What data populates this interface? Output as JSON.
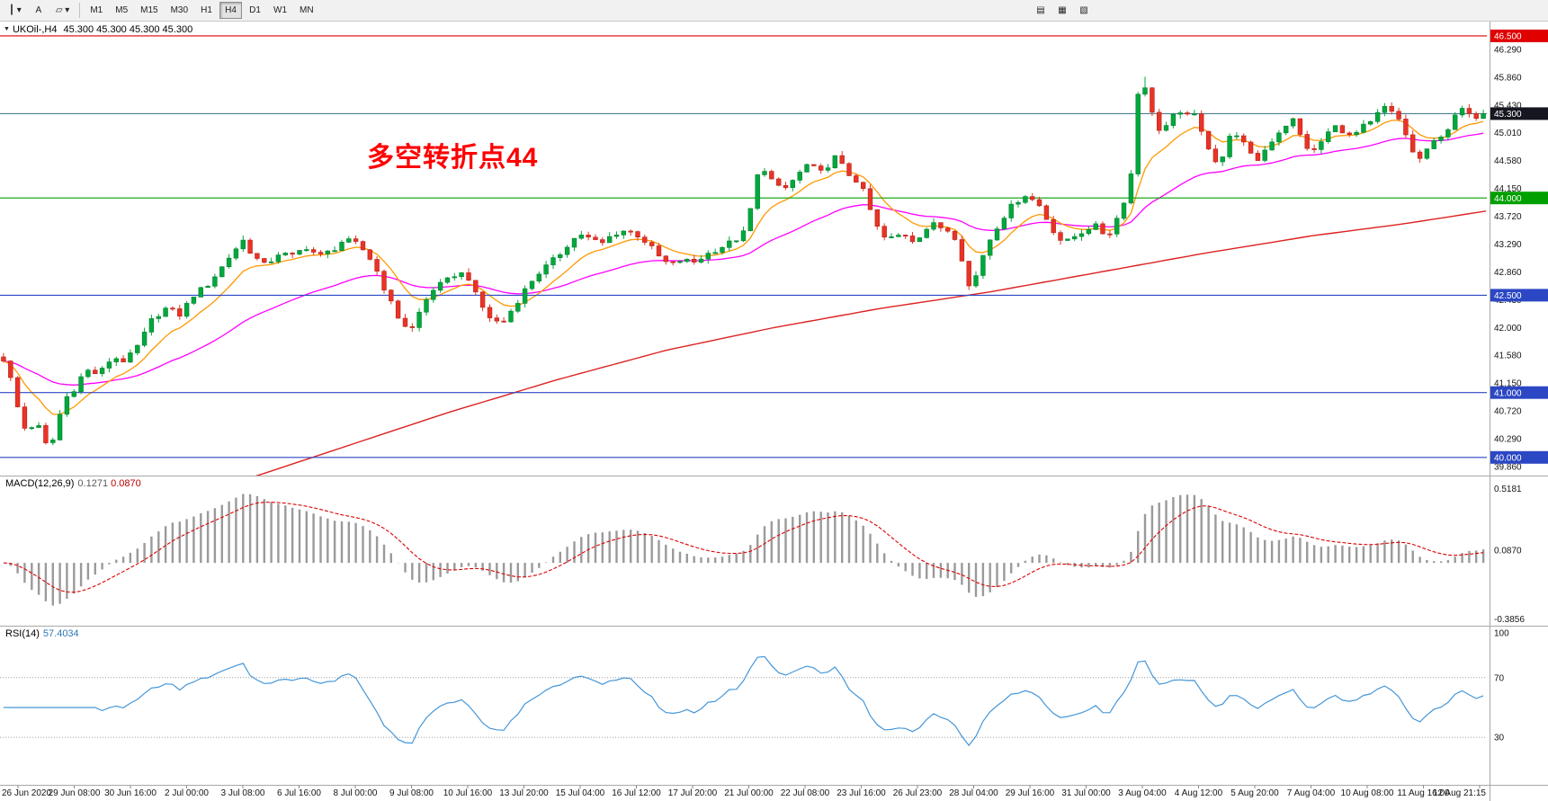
{
  "toolbar": {
    "tools": [
      {
        "name": "line-studies-tool",
        "glyph": "┃",
        "has_dropdown": true
      },
      {
        "name": "text-tool",
        "glyph": "A",
        "has_dropdown": false
      },
      {
        "name": "shapes-tool",
        "glyph": "▱",
        "has_dropdown": true
      }
    ],
    "timeframes": [
      "M1",
      "M5",
      "M15",
      "M30",
      "H1",
      "H4",
      "D1",
      "W1",
      "MN"
    ],
    "selected_timeframe": "H4",
    "extras": [
      {
        "name": "toolbar-extra-1",
        "glyph": "▤"
      },
      {
        "name": "toolbar-extra-2",
        "glyph": "▦"
      },
      {
        "name": "toolbar-extra-3",
        "glyph": "▧"
      }
    ]
  },
  "chart": {
    "title_symbol": "UKOil-,H4",
    "title_quotes": "45.300 45.300 45.300 45.300",
    "annotation": {
      "text": "多空转折点44",
      "color": "#ff0000"
    },
    "price_axis_ticks": [
      "46.290",
      "45.860",
      "45.430",
      "45.010",
      "44.580",
      "44.150",
      "43.720",
      "43.290",
      "42.860",
      "42.430",
      "42.000",
      "41.580",
      "41.150",
      "40.720",
      "40.290",
      "39.860"
    ],
    "price_badges": [
      {
        "label": "46.500",
        "price": 46.5,
        "bg": "#e00000"
      },
      {
        "label": "45.300",
        "price": 45.3,
        "bg": "#15161f"
      },
      {
        "label": "44.000",
        "price": 44.0,
        "bg": "#00a000"
      },
      {
        "label": "42.500",
        "price": 42.5,
        "bg": "#2b47c4"
      },
      {
        "label": "41.000",
        "price": 41.0,
        "bg": "#2b47c4"
      },
      {
        "label": "40.000",
        "price": 40.0,
        "bg": "#2b47c4"
      }
    ],
    "horizontal_lines": [
      {
        "price": 46.5,
        "color": "#e00000"
      },
      {
        "price": 45.3,
        "color": "#4a7d96"
      },
      {
        "price": 44.0,
        "color": "#00a000"
      },
      {
        "price": 42.5,
        "color": "#2b47c4"
      },
      {
        "price": 41.0,
        "color": "#2b47c4"
      },
      {
        "price": 40.0,
        "color": "#2b47c4"
      }
    ],
    "time_axis_labels": [
      "26 Jun 2020",
      "29 Jun 08:00",
      "30 Jun 16:00",
      "2 Jul 00:00",
      "3 Jul 08:00",
      "6 Jul 16:00",
      "8 Jul 00:00",
      "9 Jul 08:00",
      "10 Jul 16:00",
      "13 Jul 20:00",
      "15 Jul 04:00",
      "16 Jul 12:00",
      "17 Jul 20:00",
      "21 Jul 00:00",
      "22 Jul 08:00",
      "23 Jul 16:00",
      "26 Jul 23:00",
      "28 Jul 04:00",
      "29 Jul 16:00",
      "31 Jul 00:00",
      "3 Aug 04:00",
      "4 Aug 12:00",
      "5 Aug 20:00",
      "7 Aug 04:00",
      "10 Aug 08:00",
      "11 Aug 16:00",
      "12 Aug 21:15"
    ],
    "price_range": {
      "min": 39.72,
      "max": 46.72
    },
    "bars": 211,
    "last_price": 45.3,
    "price_path": [
      [
        3,
        41.55
      ],
      [
        12,
        41.2
      ],
      [
        20,
        40.75
      ],
      [
        30,
        40.35
      ],
      [
        40,
        40.6
      ],
      [
        48,
        40.25
      ],
      [
        56,
        40.12
      ],
      [
        64,
        40.55
      ],
      [
        72,
        40.9
      ],
      [
        82,
        41.05
      ],
      [
        95,
        41.35
      ],
      [
        110,
        41.28
      ],
      [
        125,
        41.55
      ],
      [
        140,
        41.48
      ],
      [
        155,
        41.75
      ],
      [
        170,
        42.15
      ],
      [
        185,
        42.3
      ],
      [
        200,
        42.2
      ],
      [
        215,
        42.5
      ],
      [
        230,
        42.65
      ],
      [
        245,
        42.9
      ],
      [
        258,
        43.15
      ],
      [
        270,
        43.35
      ],
      [
        282,
        43.1
      ],
      [
        295,
        42.95
      ],
      [
        310,
        43.15
      ],
      [
        325,
        43.1
      ],
      [
        340,
        43.25
      ],
      [
        355,
        43.1
      ],
      [
        370,
        43.2
      ],
      [
        382,
        43.35
      ],
      [
        395,
        43.3
      ],
      [
        408,
        43.15
      ],
      [
        420,
        42.85
      ],
      [
        432,
        42.45
      ],
      [
        445,
        42.1
      ],
      [
        457,
        41.95
      ],
      [
        470,
        42.35
      ],
      [
        482,
        42.6
      ],
      [
        495,
        42.7
      ],
      [
        508,
        42.85
      ],
      [
        520,
        42.8
      ],
      [
        532,
        42.4
      ],
      [
        545,
        42.15
      ],
      [
        558,
        42.05
      ],
      [
        570,
        42.3
      ],
      [
        582,
        42.55
      ],
      [
        595,
        42.8
      ],
      [
        608,
        42.95
      ],
      [
        620,
        43.1
      ],
      [
        632,
        43.3
      ],
      [
        645,
        43.45
      ],
      [
        658,
        43.35
      ],
      [
        670,
        43.3
      ],
      [
        682,
        43.45
      ],
      [
        695,
        43.5
      ],
      [
        707,
        43.45
      ],
      [
        720,
        43.3
      ],
      [
        732,
        43.1
      ],
      [
        745,
        42.95
      ],
      [
        758,
        43.05
      ],
      [
        770,
        43.0
      ],
      [
        782,
        43.1
      ],
      [
        795,
        43.2
      ],
      [
        808,
        43.28
      ],
      [
        820,
        43.38
      ],
      [
        830,
        43.5
      ],
      [
        838,
        44.1
      ],
      [
        846,
        44.55
      ],
      [
        854,
        44.35
      ],
      [
        862,
        44.2
      ],
      [
        870,
        44.1
      ],
      [
        880,
        44.25
      ],
      [
        890,
        44.4
      ],
      [
        900,
        44.55
      ],
      [
        910,
        44.35
      ],
      [
        920,
        44.5
      ],
      [
        930,
        44.65
      ],
      [
        940,
        44.4
      ],
      [
        950,
        44.3
      ],
      [
        957,
        44.2
      ],
      [
        965,
        43.9
      ],
      [
        975,
        43.55
      ],
      [
        985,
        43.35
      ],
      [
        995,
        43.4
      ],
      [
        1005,
        43.45
      ],
      [
        1015,
        43.35
      ],
      [
        1025,
        43.45
      ],
      [
        1035,
        43.6
      ],
      [
        1045,
        43.55
      ],
      [
        1055,
        43.5
      ],
      [
        1065,
        43.35
      ],
      [
        1072,
        42.9
      ],
      [
        1078,
        42.6
      ],
      [
        1085,
        42.8
      ],
      [
        1092,
        43.1
      ],
      [
        1100,
        43.35
      ],
      [
        1110,
        43.6
      ],
      [
        1120,
        43.8
      ],
      [
        1130,
        43.95
      ],
      [
        1140,
        44.05
      ],
      [
        1150,
        43.95
      ],
      [
        1158,
        43.85
      ],
      [
        1166,
        43.6
      ],
      [
        1174,
        43.45
      ],
      [
        1182,
        43.3
      ],
      [
        1190,
        43.35
      ],
      [
        1198,
        43.45
      ],
      [
        1207,
        43.5
      ],
      [
        1215,
        43.6
      ],
      [
        1223,
        43.5
      ],
      [
        1231,
        43.4
      ],
      [
        1239,
        43.6
      ],
      [
        1247,
        43.85
      ],
      [
        1255,
        44.2
      ],
      [
        1262,
        44.7
      ],
      [
        1267,
        46.12
      ],
      [
        1272,
        45.8
      ],
      [
        1278,
        45.4
      ],
      [
        1285,
        45.15
      ],
      [
        1292,
        45.0
      ],
      [
        1300,
        45.2
      ],
      [
        1308,
        45.3
      ],
      [
        1316,
        45.25
      ],
      [
        1324,
        45.4
      ],
      [
        1332,
        45.1
      ],
      [
        1340,
        44.9
      ],
      [
        1348,
        44.65
      ],
      [
        1356,
        44.5
      ],
      [
        1364,
        44.85
      ],
      [
        1372,
        45.05
      ],
      [
        1380,
        44.9
      ],
      [
        1388,
        44.7
      ],
      [
        1396,
        44.55
      ],
      [
        1404,
        44.7
      ],
      [
        1412,
        44.85
      ],
      [
        1420,
        45.0
      ],
      [
        1428,
        45.1
      ],
      [
        1436,
        45.25
      ],
      [
        1444,
        45.0
      ],
      [
        1452,
        44.8
      ],
      [
        1460,
        44.7
      ],
      [
        1468,
        44.85
      ],
      [
        1476,
        45.0
      ],
      [
        1484,
        45.1
      ],
      [
        1492,
        45.05
      ],
      [
        1500,
        44.95
      ],
      [
        1508,
        45.0
      ],
      [
        1516,
        45.1
      ],
      [
        1524,
        45.15
      ],
      [
        1532,
        45.3
      ],
      [
        1540,
        45.4
      ],
      [
        1548,
        45.3
      ],
      [
        1556,
        45.2
      ],
      [
        1564,
        44.95
      ],
      [
        1572,
        44.65
      ],
      [
        1580,
        44.6
      ],
      [
        1588,
        44.75
      ],
      [
        1596,
        44.9
      ],
      [
        1604,
        45.0
      ],
      [
        1612,
        45.1
      ],
      [
        1620,
        45.3
      ],
      [
        1628,
        45.4
      ],
      [
        1636,
        45.2
      ],
      [
        1644,
        45.3
      ]
    ],
    "ma_slow_path": [
      [
        140,
        39.2
      ],
      [
        260,
        39.6
      ],
      [
        380,
        40.15
      ],
      [
        500,
        40.7
      ],
      [
        620,
        41.2
      ],
      [
        740,
        41.65
      ],
      [
        860,
        42.0
      ],
      [
        980,
        42.3
      ],
      [
        1100,
        42.55
      ],
      [
        1220,
        42.85
      ],
      [
        1340,
        43.15
      ],
      [
        1460,
        43.42
      ],
      [
        1560,
        43.6
      ],
      [
        1653,
        43.8
      ]
    ],
    "ma_periods": {
      "fast_ema": 9,
      "mid_ema": 34
    },
    "colors": {
      "candle_up": "#00a83d",
      "candle_up_border": "#00802e",
      "candle_down": "#ea3326",
      "candle_down_border": "#b3241a",
      "ma_fast": "#ff9900",
      "ma_mid": "#ff00ff",
      "ma_slow": "#dd2222",
      "rsi_line": "#4596d8",
      "macd_hist": "#9a9a9a",
      "macd_signal": "#dd0000"
    }
  },
  "macd": {
    "name": "MACD(12,26,9)",
    "main_value": "0.1271",
    "signal_value": "0.0870",
    "axis": {
      "top": "0.5181",
      "mid": "0.0870",
      "bottom": "-0.3856"
    },
    "params": {
      "fast": 12,
      "slow": 26,
      "signal": 9
    }
  },
  "rsi": {
    "name": "RSI(14)",
    "value": "57.4034",
    "axis": {
      "top": "100",
      "upper": "70",
      "lower": "30"
    },
    "levels": [
      70,
      30
    ],
    "period": 14
  }
}
